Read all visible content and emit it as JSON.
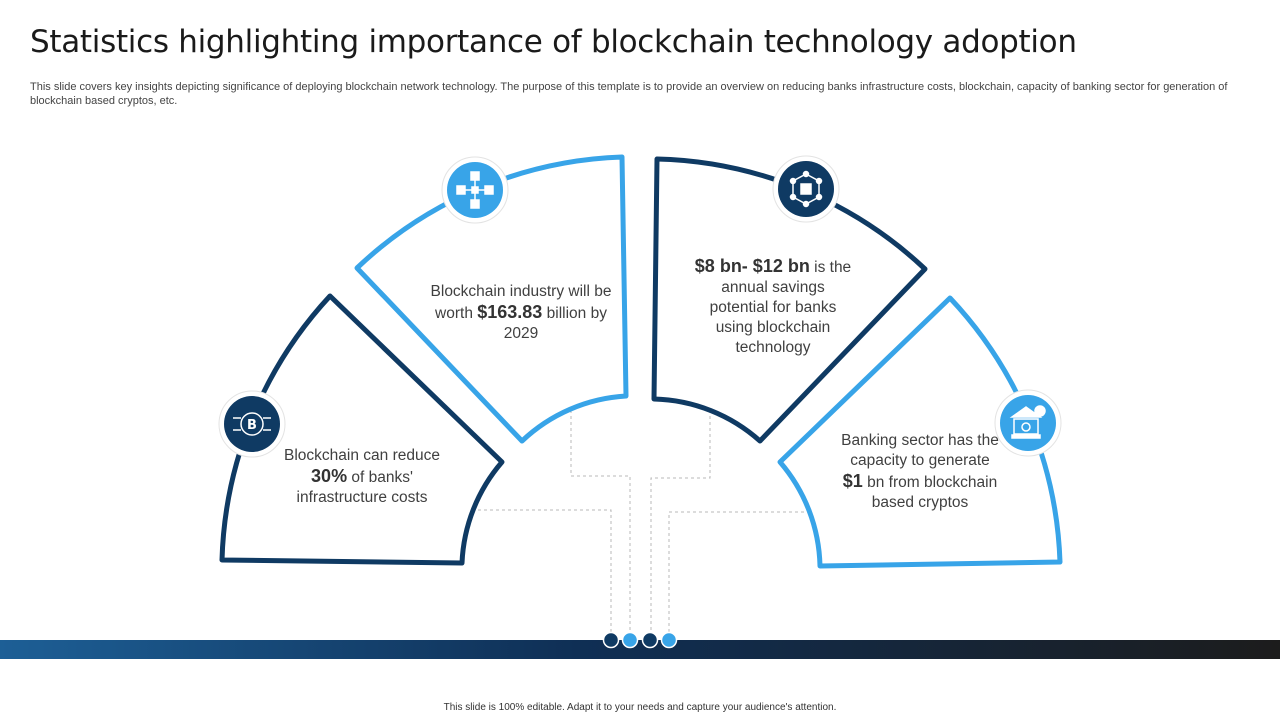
{
  "slide": {
    "title": "Statistics highlighting importance of blockchain technology adoption",
    "subtitle": "This slide covers key insights depicting significance of deploying blockchain network technology. The purpose of this template is to provide an overview on reducing banks infrastructure costs, blockchain, capacity of banking sector for generation of blockchain based cryptos, etc."
  },
  "colors": {
    "dark": "#0f3a63",
    "light": "#38a4e8"
  },
  "segments": [
    {
      "icon": "bitcoin-chip-icon",
      "pre": "Blockchain can reduce ",
      "highlight": "30%",
      "post": " of banks' infrastructure costs"
    },
    {
      "icon": "blockchain-network-icon",
      "pre": "Blockchain industry will be worth ",
      "highlight": "$163.83",
      "post": " billion by 2029"
    },
    {
      "icon": "cube-network-icon",
      "pre": "",
      "highlight": "$8 bn- $12 bn",
      "post": " is the annual savings potential for banks using blockchain technology"
    },
    {
      "icon": "bank-crypto-icon",
      "pre": "Banking sector has the capacity to generate ",
      "highlight": "$1",
      "post": " bn from blockchain based cryptos"
    }
  ],
  "footer": {
    "note": "This slide is 100% editable. Adapt it to your needs and capture your audience's attention."
  }
}
